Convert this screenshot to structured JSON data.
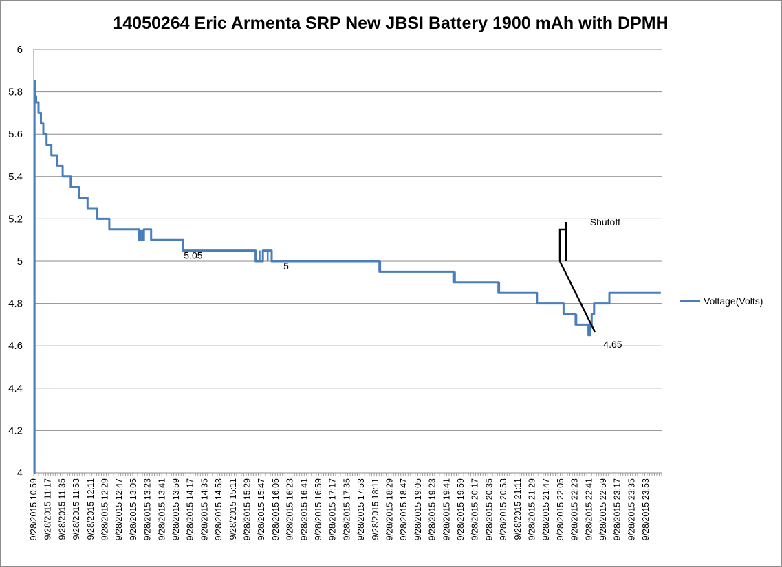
{
  "chart_data": {
    "type": "line",
    "title": "14050264 Eric Armenta SRP New JBSI Battery 1900 mAh with DPMH",
    "xlabel": "",
    "ylabel": "",
    "ylim": [
      4,
      6
    ],
    "yticks": [
      "4",
      "4.2",
      "4.4",
      "4.6",
      "4.8",
      "5",
      "5.2",
      "5.4",
      "5.6",
      "5.8",
      "6"
    ],
    "grid": true,
    "legend_position": "right",
    "x_ticks": [
      "9/28/2015 10:59",
      "9/28/2015 11:17",
      "9/28/2015 11:35",
      "9/28/2015 11:53",
      "9/28/2015 12:11",
      "9/28/2015 12:29",
      "9/28/2015 12:47",
      "9/28/2015 13:05",
      "9/28/2015 13:23",
      "9/28/2015 13:41",
      "9/28/2015 13:59",
      "9/28/2015 14:17",
      "9/28/2015 14:35",
      "9/28/2015 14:53",
      "9/28/2015 15:11",
      "9/28/2015 15:29",
      "9/28/2015 15:47",
      "9/28/2015 16:05",
      "9/28/2015 16:23",
      "9/28/2015 16:41",
      "9/28/2015 16:59",
      "9/28/2015 17:17",
      "9/28/2015 17:35",
      "9/28/2015 17:53",
      "9/28/2015 18:11",
      "9/28/2015 18:29",
      "9/28/2015 18:47",
      "9/28/2015 19:05",
      "9/28/2015 19:23",
      "9/28/2015 19:41",
      "9/28/2015 19:59",
      "9/28/2015 20:17",
      "9/28/2015 20:35",
      "9/28/2015 20:53",
      "9/28/2015 21:11",
      "9/28/2015 21:29",
      "9/28/2015 21:47",
      "9/28/2015 22:05",
      "9/28/2015 22:23",
      "9/28/2015 22:41",
      "9/28/2015 22:59",
      "9/28/2015 23:17",
      "9/28/2015 23:35",
      "9/28/2015 23:53"
    ],
    "series": [
      {
        "name": "Voltage(Volts)",
        "color": "#4a7ebb",
        "x": [
          "2015-09-28 10:59",
          "2015-09-28 11:00",
          "2015-09-28 11:01",
          "2015-09-28 11:02",
          "2015-09-28 11:05",
          "2015-09-28 11:08",
          "2015-09-28 11:11",
          "2015-09-28 11:15",
          "2015-09-28 11:21",
          "2015-09-28 11:28",
          "2015-09-28 11:35",
          "2015-09-28 11:45",
          "2015-09-28 11:55",
          "2015-09-28 12:06",
          "2015-09-28 12:18",
          "2015-09-28 12:33",
          "2015-09-28 12:50",
          "2015-09-28 13:10",
          "2015-09-28 13:16",
          "2015-09-28 13:25",
          "2015-09-28 14:03",
          "2015-09-28 14:05",
          "2015-09-28 15:29",
          "2015-09-28 15:35",
          "2015-09-28 15:44",
          "2015-09-28 15:55",
          "2015-09-28 18:09",
          "2015-09-28 18:12",
          "2015-09-28 19:41",
          "2015-09-28 19:45",
          "2015-09-28 20:37",
          "2015-09-28 20:40",
          "2015-09-28 21:25",
          "2015-09-28 21:36",
          "2015-09-28 21:58",
          "2015-09-28 22:12",
          "2015-09-28 22:13",
          "2015-09-28 22:28",
          "2015-09-28 22:29",
          "2015-09-28 22:31",
          "2015-09-28 22:33",
          "2015-09-28 22:36",
          "2015-09-28 22:46",
          "2015-09-28 22:55",
          "2015-09-28 23:59"
        ],
        "values": [
          4.0,
          5.85,
          5.78,
          5.75,
          5.7,
          5.65,
          5.6,
          5.55,
          5.5,
          5.45,
          5.4,
          5.35,
          5.3,
          5.25,
          5.2,
          5.15,
          5.15,
          5.1,
          5.15,
          5.1,
          5.1,
          5.05,
          5.05,
          5.0,
          5.05,
          5.0,
          4.95,
          4.95,
          4.9,
          4.9,
          4.85,
          4.85,
          4.8,
          4.8,
          4.75,
          4.75,
          4.7,
          4.7,
          4.65,
          4.7,
          4.75,
          4.8,
          4.8,
          4.85,
          4.85
        ]
      }
    ],
    "annotations": [
      {
        "text": "5.05",
        "x": "2015-09-28 14:10",
        "y": 5.05
      },
      {
        "text": "5",
        "x": "2015-09-28 16:13",
        "y": 5.0
      },
      {
        "text": "4.65",
        "x": "2015-09-28 22:39",
        "y": 4.65
      },
      {
        "text": "Shutoff",
        "x": "2015-09-28 22:12",
        "y": 5.13
      }
    ]
  }
}
